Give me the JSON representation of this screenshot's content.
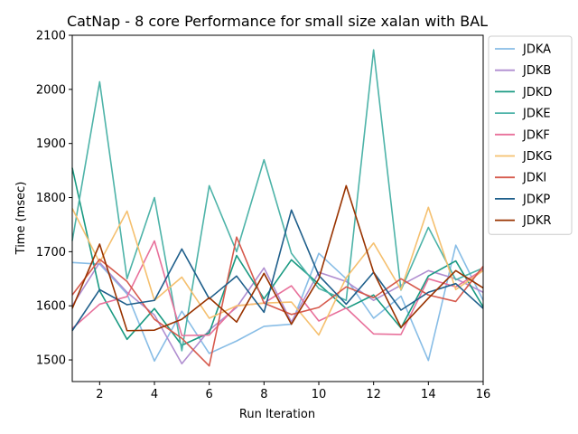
{
  "chart_data": {
    "type": "line",
    "title": "CatNap - 8 core Performance for small size xalan with BAL",
    "xlabel": "Run Iteration",
    "ylabel": "Time (msec)",
    "xlim": [
      1,
      16
    ],
    "ylim": [
      1460,
      2100
    ],
    "x": [
      1,
      2,
      3,
      4,
      5,
      6,
      7,
      8,
      9,
      10,
      11,
      12,
      13,
      14,
      15,
      16
    ],
    "xticks": [
      2,
      4,
      6,
      8,
      10,
      12,
      14,
      16
    ],
    "yticks": [
      1500,
      1600,
      1700,
      1800,
      1900,
      2000,
      2100
    ],
    "grid": false,
    "legend_position": "outside-right",
    "series": [
      {
        "name": "JDKA",
        "color": "#88bde6",
        "values": [
          1680,
          1677,
          1622,
          1498,
          1590,
          1512,
          1535,
          1562,
          1566,
          1697,
          1650,
          1577,
          1618,
          1499,
          1712,
          1610
        ]
      },
      {
        "name": "JDKB",
        "color": "#b08ed0",
        "values": [
          1600,
          1680,
          1625,
          1583,
          1493,
          1555,
          1597,
          1670,
          1570,
          1662,
          1645,
          1610,
          1638,
          1665,
          1650,
          1625
        ]
      },
      {
        "name": "JDKD",
        "color": "#1a9a82",
        "values": [
          1855,
          1628,
          1538,
          1595,
          1527,
          1550,
          1693,
          1613,
          1685,
          1640,
          1595,
          1620,
          1559,
          1655,
          1683,
          1598
        ]
      },
      {
        "name": "JDKE",
        "color": "#4db3a8",
        "values": [
          1720,
          2014,
          1650,
          1800,
          1517,
          1822,
          1700,
          1870,
          1697,
          1632,
          1610,
          2073,
          1629,
          1745,
          1648,
          1670
        ]
      },
      {
        "name": "JDKF",
        "color": "#e8719b",
        "values": [
          1558,
          1603,
          1617,
          1720,
          1545,
          1546,
          1600,
          1605,
          1637,
          1572,
          1596,
          1548,
          1547,
          1650,
          1635,
          1667
        ]
      },
      {
        "name": "JDKG",
        "color": "#f5c06f",
        "values": [
          1780,
          1680,
          1775,
          1610,
          1653,
          1577,
          1600,
          1605,
          1607,
          1546,
          1652,
          1716,
          1630,
          1782,
          1630,
          1665
        ]
      },
      {
        "name": "JDKI",
        "color": "#d65a4d",
        "values": [
          1620,
          1686,
          1645,
          1575,
          1540,
          1489,
          1727,
          1605,
          1584,
          1597,
          1635,
          1615,
          1650,
          1620,
          1608,
          1673
        ]
      },
      {
        "name": "JDKP",
        "color": "#1f5f8b",
        "values": [
          1554,
          1630,
          1602,
          1610,
          1705,
          1613,
          1655,
          1588,
          1777,
          1656,
          1603,
          1662,
          1592,
          1625,
          1641,
          1595
        ]
      },
      {
        "name": "JDKR",
        "color": "#993300",
        "values": [
          1595,
          1714,
          1554,
          1555,
          1575,
          1615,
          1570,
          1660,
          1566,
          1650,
          1822,
          1662,
          1560,
          1614,
          1665,
          1633
        ]
      }
    ]
  }
}
